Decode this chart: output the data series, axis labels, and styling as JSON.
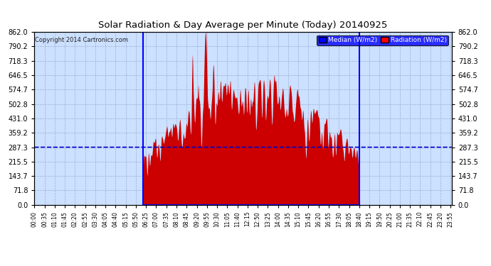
{
  "title": "Solar Radiation & Day Average per Minute (Today) 20140925",
  "copyright": "Copyright 2014 Cartronics.com",
  "legend_median": "Median (W/m2)",
  "legend_radiation": "Radiation (W/m2)",
  "y_ticks": [
    0.0,
    71.8,
    143.7,
    215.5,
    287.3,
    359.2,
    431.0,
    502.8,
    574.7,
    646.5,
    718.3,
    790.2,
    862.0
  ],
  "y_max": 862.0,
  "y_min": 0.0,
  "bg_color": "#ffffff",
  "plot_bg_color": "#cce0ff",
  "radiation_color": "#cc0000",
  "median_color": "#0000cc",
  "grid_color": "#8899bb",
  "title_color": "#000000",
  "sunrise_min": 375,
  "sunset_min": 1121,
  "median_value": 287.3,
  "n_total": 1440,
  "xtick_step": 35
}
